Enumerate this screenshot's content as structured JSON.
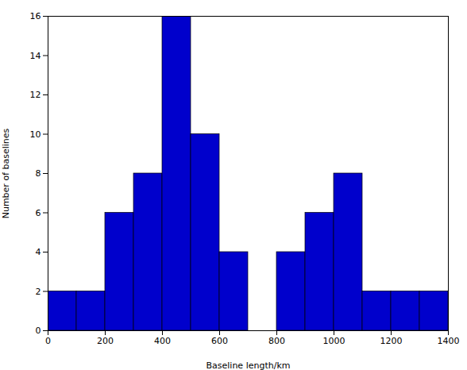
{
  "chart_data": {
    "type": "histogram",
    "bins": [
      0,
      100,
      200,
      300,
      400,
      500,
      600,
      700,
      800,
      900,
      1000,
      1100,
      1200,
      1300,
      1400
    ],
    "values": [
      2,
      2,
      6,
      8,
      16,
      10,
      4,
      0,
      4,
      6,
      8,
      2,
      2,
      2
    ],
    "color": "#0000CC",
    "xlabel": "Baseline length/km",
    "ylabel": "Number of baselines",
    "xlim": [
      0,
      1400
    ],
    "ylim": [
      0,
      16
    ],
    "xticks": [
      0,
      200,
      400,
      600,
      800,
      1000,
      1200,
      1400
    ],
    "yticks": [
      0,
      2,
      4,
      6,
      8,
      10,
      12,
      14,
      16
    ],
    "grid": false
  }
}
